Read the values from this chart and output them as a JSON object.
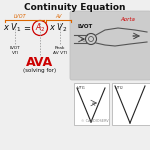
{
  "title": "Continuity Equation",
  "title_fontsize": 6.5,
  "title_fontweight": "bold",
  "bg_color": "#efefef",
  "text_color_dark": "#111111",
  "text_color_red": "#cc0000",
  "text_color_orange": "#dd6600",
  "lvot_label": "LVOT",
  "av_label": "AV",
  "lvot_vti": "LVOT\nVTI",
  "peak_av_vti": "Peak\nAV VTI",
  "ava_label": "AVA",
  "solving_label": "(solving for)",
  "aorta_label": "Aorta",
  "lvot_diagram_label": "LVOT",
  "cardioserv": "© CARDIOSERV",
  "diagram_bg": "#cccccc",
  "waveform_bg": "#ffffff"
}
